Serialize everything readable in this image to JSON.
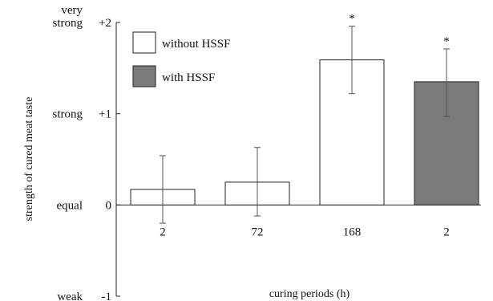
{
  "chart_data": {
    "type": "bar",
    "xlabel": "curing periods (h)",
    "ylabel": "strength of cured meat taste",
    "ylim": [
      -1,
      2
    ],
    "y_ticks": [
      {
        "value": 2,
        "label": "+2",
        "word": "very\nstrong"
      },
      {
        "value": 1,
        "label": "+1",
        "word": "strong"
      },
      {
        "value": 0,
        "label": "0",
        "word": "equal"
      },
      {
        "value": -1,
        "label": "-1",
        "word": "weak"
      }
    ],
    "categories": [
      "2",
      "72",
      "168",
      "2"
    ],
    "bars": [
      {
        "category": "2",
        "series": "without HSSF",
        "value": 0.17,
        "err_low": -0.2,
        "err_high": 0.54,
        "marker": ""
      },
      {
        "category": "72",
        "series": "without HSSF",
        "value": 0.25,
        "err_low": -0.12,
        "err_high": 0.63,
        "marker": ""
      },
      {
        "category": "168",
        "series": "without HSSF",
        "value": 1.59,
        "err_low": 1.22,
        "err_high": 1.96,
        "marker": "*"
      },
      {
        "category": "2",
        "series": "with HSSF",
        "value": 1.35,
        "err_low": 0.97,
        "err_high": 1.71,
        "marker": "*"
      }
    ],
    "series": [
      {
        "name": "without HSSF",
        "color": "#ffffff"
      },
      {
        "name": "with HSSF",
        "color": "#7a7a7a"
      }
    ],
    "legend": "top-left",
    "grid": false
  }
}
